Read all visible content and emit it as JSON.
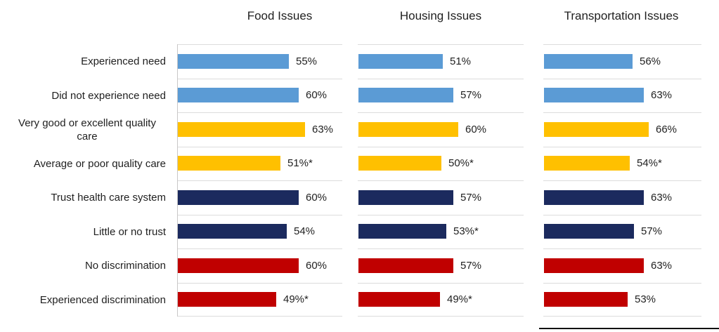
{
  "colors": {
    "blue": "#5B9BD5",
    "yellow": "#FFC000",
    "navy": "#1B2A5E",
    "red": "#C00000",
    "gridline": "#DCDCDC",
    "axis_line": "#C9C7C7",
    "rule": "#111111",
    "text": "#1F1F1F"
  },
  "chart_data": {
    "type": "bar",
    "orientation": "horizontal",
    "legend": "none",
    "grid": "horizontal row separator lines per panel",
    "categories": [
      "Experienced need",
      "Did not experience need",
      "Very good or excellent quality care",
      "Average or poor quality care",
      "Trust health care system",
      "Little or no trust",
      "No discrimination",
      "Experienced discrimination"
    ],
    "category_colors": [
      "blue",
      "blue",
      "yellow",
      "yellow",
      "navy",
      "navy",
      "red",
      "red"
    ],
    "series": [
      {
        "name": "Food Issues",
        "values": [
          55,
          60,
          63,
          51,
          60,
          54,
          60,
          49
        ],
        "labels": [
          "55%",
          "60%",
          "63%",
          "51%*",
          "60%",
          "54%",
          "60%",
          "49%*"
        ],
        "xlim": [
          0,
          82
        ]
      },
      {
        "name": "Housing Issues",
        "values": [
          51,
          57,
          60,
          50,
          57,
          53,
          57,
          49
        ],
        "labels": [
          "51%",
          "57%",
          "60%",
          "50%*",
          "57%",
          "53%*",
          "57%",
          "49%*"
        ],
        "xlim": [
          0,
          100
        ]
      },
      {
        "name": "Transportation Issues",
        "values": [
          56,
          63,
          66,
          54,
          63,
          57,
          63,
          53
        ],
        "labels": [
          "56%",
          "63%",
          "66%",
          "54%*",
          "63%",
          "57%",
          "63%",
          "53%"
        ],
        "xlim": [
          0,
          100
        ]
      }
    ]
  }
}
